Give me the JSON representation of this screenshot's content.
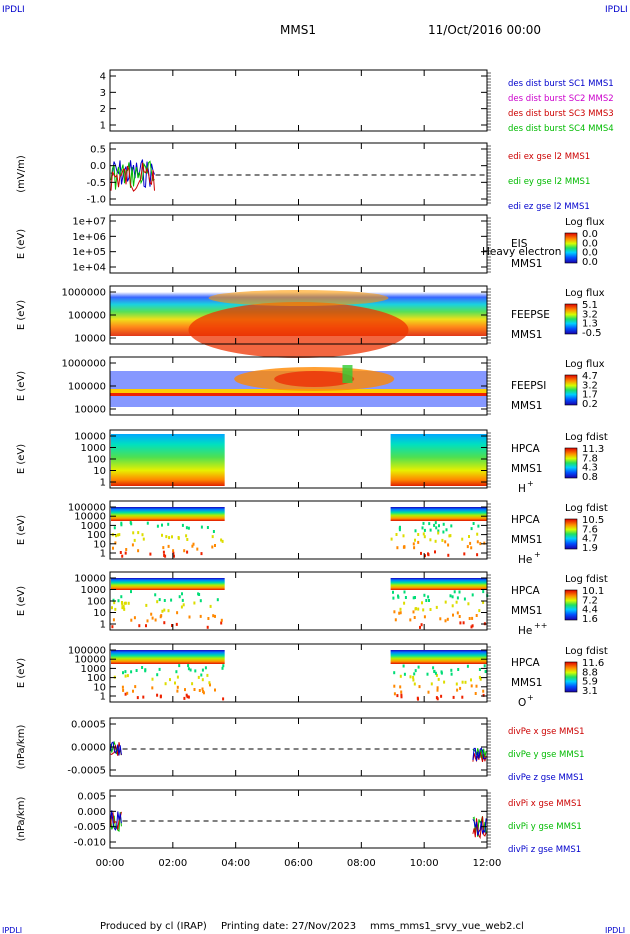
{
  "header": {
    "corner_left": "IPDLI",
    "corner_right": "IPDLI",
    "title": "MMS1",
    "date": "11/Oct/2016 00:00",
    "corner_bottom_left": "IPDLI",
    "corner_bottom_right": "IPDLI"
  },
  "footer": {
    "produced": "Produced by cl (IRAP)",
    "printing": "Printing date: 27/Nov/2023",
    "file": "mms_mms1_srvy_vue_web2.cl"
  },
  "chart_data": {
    "type": "multi-panel",
    "x_ticks": [
      "00:00",
      "02:00",
      "04:00",
      "06:00",
      "08:00",
      "10:00",
      "12:00"
    ],
    "x_range_hours": [
      0,
      12
    ],
    "panels": [
      {
        "id": "des",
        "type": "line",
        "yticks": [
          "4",
          "3",
          "2",
          "1"
        ],
        "legend": [
          {
            "text": "des dist burst SC1 MMS1",
            "color": "#0000cc"
          },
          {
            "text": "des dist burst SC2 MMS2",
            "color": "#cc00cc"
          },
          {
            "text": "des dist burst SC3 MMS3",
            "color": "#cc0000"
          },
          {
            "text": "des dist burst SC4 MMS4",
            "color": "#00bb00"
          }
        ]
      },
      {
        "id": "edi",
        "type": "line",
        "ylabel": "(mV/m)",
        "yticks": [
          "0.5",
          "0.0",
          "-0.5",
          "-1.0"
        ],
        "data_span_hours": [
          0.0,
          1.45
        ],
        "legend": [
          {
            "text": "edi ex gse l2 MMS1",
            "color": "#cc0000"
          },
          {
            "text": "edi ey gse l2 MMS1",
            "color": "#00bb00"
          },
          {
            "text": "edi ez gse l2 MMS1",
            "color": "#0000cc"
          }
        ]
      },
      {
        "id": "eis",
        "type": "heatmap",
        "ylabel": "E (eV)",
        "yticks": [
          "1e+07",
          "1e+06",
          "1e+05",
          "1e+04"
        ],
        "name": "EIS",
        "sub": "MMS1",
        "overlay": "Heavy electron to",
        "cbar_title": "Log flux",
        "cbar_ticks": [
          "0.0",
          "0.0",
          "0.0",
          "0.0"
        ]
      },
      {
        "id": "feepse",
        "type": "heatmap",
        "ylabel": "E (eV)",
        "yticks": [
          "1000000",
          "100000",
          "10000"
        ],
        "name": "FEEPSE",
        "sub": "MMS1",
        "cbar_title": "Log flux",
        "cbar_ticks": [
          "5.1",
          "3.2",
          "1.3",
          "-0.5"
        ]
      },
      {
        "id": "feepsi",
        "type": "heatmap",
        "ylabel": "E (eV)",
        "yticks": [
          "1000000",
          "100000",
          "10000"
        ],
        "name": "FEEPSI",
        "sub": "MMS1",
        "cbar_title": "Log flux",
        "cbar_ticks": [
          "4.7",
          "3.2",
          "1.7",
          "0.2"
        ]
      },
      {
        "id": "hpca_h",
        "type": "heatmap",
        "ylabel": "E (eV)",
        "yticks": [
          "10000",
          "1000",
          "100",
          "10",
          "1"
        ],
        "name": "HPCA",
        "sub": "MMS1",
        "species": "H",
        "charge": "+",
        "cbar_title": "Log fdist",
        "cbar_ticks": [
          "11.3",
          "7.8",
          "4.3",
          "0.8"
        ],
        "data_spans_hours": [
          [
            0.0,
            3.65
          ],
          [
            8.9,
            12.0
          ]
        ]
      },
      {
        "id": "hpca_he",
        "type": "heatmap",
        "ylabel": "E (eV)",
        "yticks": [
          "100000",
          "10000",
          "1000",
          "100",
          "10",
          "1"
        ],
        "name": "HPCA",
        "sub": "MMS1",
        "species": "He",
        "charge": "+",
        "cbar_title": "Log fdist",
        "cbar_ticks": [
          "10.5",
          "7.6",
          "4.7",
          "1.9"
        ],
        "data_spans_hours": [
          [
            0.0,
            3.65
          ],
          [
            8.9,
            12.0
          ]
        ]
      },
      {
        "id": "hpca_he2",
        "type": "heatmap",
        "ylabel": "E (eV)",
        "yticks": [
          "10000",
          "1000",
          "100",
          "10",
          "1"
        ],
        "name": "HPCA",
        "sub": "MMS1",
        "species": "He",
        "charge": "++",
        "cbar_title": "Log fdist",
        "cbar_ticks": [
          "10.1",
          "7.2",
          "4.4",
          "1.6"
        ],
        "data_spans_hours": [
          [
            0.0,
            3.65
          ],
          [
            8.9,
            12.0
          ]
        ]
      },
      {
        "id": "hpca_o",
        "type": "heatmap",
        "ylabel": "E (eV)",
        "yticks": [
          "100000",
          "10000",
          "1000",
          "100",
          "10",
          "1"
        ],
        "name": "HPCA",
        "sub": "MMS1",
        "species": "O",
        "charge": "+",
        "cbar_title": "Log fdist",
        "cbar_ticks": [
          "11.6",
          "8.8",
          "5.9",
          "3.1"
        ],
        "data_spans_hours": [
          [
            0.0,
            3.65
          ],
          [
            8.9,
            12.0
          ]
        ]
      },
      {
        "id": "divpe",
        "type": "line",
        "ylabel": "(nPa/km)",
        "yticks": [
          "0.0005",
          "0.0000",
          "-0.0005"
        ],
        "data_spans_hours": [
          [
            0.0,
            0.4
          ],
          [
            11.55,
            12.0
          ]
        ],
        "legend": [
          {
            "text": "divPe x gse MMS1",
            "color": "#cc0000"
          },
          {
            "text": "divPe y gse MMS1",
            "color": "#00bb00"
          },
          {
            "text": "divPe z gse MMS1",
            "color": "#0000cc"
          }
        ]
      },
      {
        "id": "divpi",
        "type": "line",
        "ylabel": "(nPa/km)",
        "yticks": [
          "0.005",
          "0.000",
          "-0.005",
          "-0.010"
        ],
        "data_spans_hours": [
          [
            0.0,
            0.4
          ],
          [
            11.55,
            12.0
          ]
        ],
        "legend": [
          {
            "text": "divPi x gse MMS1",
            "color": "#cc0000"
          },
          {
            "text": "divPi y gse MMS1",
            "color": "#00bb00"
          },
          {
            "text": "divPi z gse MMS1",
            "color": "#0000cc"
          }
        ]
      }
    ]
  }
}
